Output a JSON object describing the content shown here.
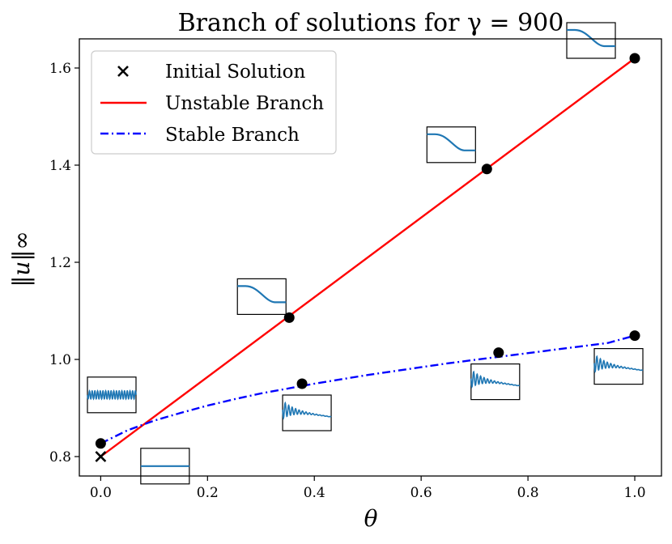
{
  "chart_data": {
    "type": "line",
    "title": "Branch of solutions for γ = 900",
    "xlabel": "θ",
    "ylabel": "‖u‖∞",
    "xlim": [
      -0.04,
      1.05
    ],
    "ylim": [
      0.76,
      1.66
    ],
    "xticks": [
      "0.0",
      "0.2",
      "0.4",
      "0.6",
      "0.8",
      "1.0"
    ],
    "yticks": [
      "0.8",
      "1.0",
      "1.2",
      "1.4",
      "1.6"
    ],
    "grid": false,
    "legend": {
      "location": "top-left",
      "entries": [
        "Initial Solution",
        "Unstable Branch",
        "Stable Branch"
      ]
    },
    "colors": {
      "unstable": "#ff0000",
      "stable": "#0000ff",
      "points": "#000000",
      "inset_curve": "#1f77b4"
    },
    "series": [
      {
        "name": "Unstable Branch",
        "style": "solid",
        "x": [
          0.0,
          1.0
        ],
        "y": [
          0.8,
          1.62
        ]
      },
      {
        "name": "Stable Branch",
        "style": "dash-dot",
        "x": [
          0.0,
          0.05,
          0.1,
          0.15,
          0.2,
          0.25,
          0.3,
          0.35,
          0.4,
          0.45,
          0.5,
          0.55,
          0.6,
          0.65,
          0.7,
          0.75,
          0.8,
          0.85,
          0.9,
          0.95,
          1.0
        ],
        "y": [
          0.827,
          0.854,
          0.874,
          0.89,
          0.905,
          0.918,
          0.93,
          0.94,
          0.95,
          0.959,
          0.968,
          0.976,
          0.984,
          0.992,
          0.999,
          1.006,
          1.013,
          1.02,
          1.027,
          1.034,
          1.049
        ]
      }
    ],
    "initial_solution": {
      "x": 0.0,
      "y": 0.8
    },
    "marked_points": [
      {
        "x": 0.0,
        "y": 0.827
      },
      {
        "x": 0.353,
        "y": 1.086
      },
      {
        "x": 0.723,
        "y": 1.392
      },
      {
        "x": 1.0,
        "y": 1.62
      },
      {
        "x": 0.377,
        "y": 0.95
      },
      {
        "x": 0.745,
        "y": 1.014
      },
      {
        "x": 1.0,
        "y": 1.049
      }
    ],
    "insets": [
      {
        "kind": "oscillating",
        "point": 0
      },
      {
        "kind": "flat",
        "point": -1
      },
      {
        "kind": "step",
        "point": 1
      },
      {
        "kind": "step",
        "point": 2
      },
      {
        "kind": "step",
        "point": 3
      },
      {
        "kind": "decaying",
        "point": 4
      },
      {
        "kind": "decaying",
        "point": 5
      },
      {
        "kind": "decaying",
        "point": 6
      }
    ]
  }
}
